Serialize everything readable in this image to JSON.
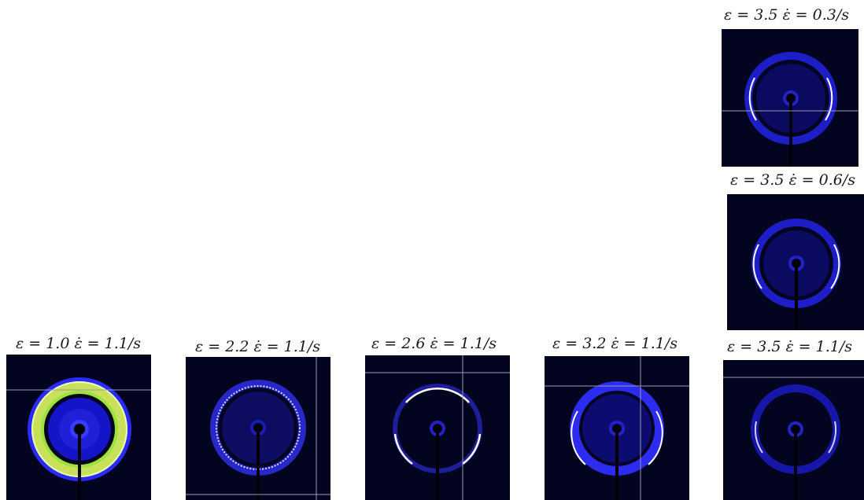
{
  "figure": {
    "panels": [
      {
        "id": "p1",
        "strain": "ε = 1.0",
        "rate": "ε̇ = 1.1/s",
        "label": "ε = 1.0   ε̇ = 1.1/s",
        "ring": "isotropic-saturated"
      },
      {
        "id": "p2",
        "strain": "ε = 2.2",
        "rate": "ε̇ = 1.1/s",
        "label": "ε = 2.2   ε̇ = 1.1/s",
        "ring": "isotropic"
      },
      {
        "id": "p3",
        "strain": "ε = 2.6",
        "rate": "ε̇ = 1.1/s",
        "label": "ε = 2.6   ε̇ = 1.1/s",
        "ring": "arcs"
      },
      {
        "id": "p4",
        "strain": "ε = 3.2",
        "rate": "ε̇ = 1.1/s",
        "label": "ε = 3.2   ε̇ = 1.1/s",
        "ring": "arcs"
      },
      {
        "id": "p5",
        "strain": "ε = 3.5",
        "rate": "ε̇ = 1.1/s",
        "label": "ε = 3.5   ε̇ = 1.1/s",
        "ring": "arcs-faint"
      },
      {
        "id": "p6",
        "strain": "ε = 3.5",
        "rate": "ε̇ = 0.6/s",
        "label": "ε = 3.5   ε̇ = 0.6/s",
        "ring": "arcs"
      },
      {
        "id": "p7",
        "strain": "ε = 3.5",
        "rate": "ε̇ = 0.3/s",
        "label": "ε = 3.5   ε̇ = 0.3/s",
        "ring": "arcs"
      }
    ],
    "colors": {
      "background": "#030420",
      "ring": "#3b3bff",
      "highlight": "#ffffff",
      "saturated": "#9be23a"
    }
  }
}
